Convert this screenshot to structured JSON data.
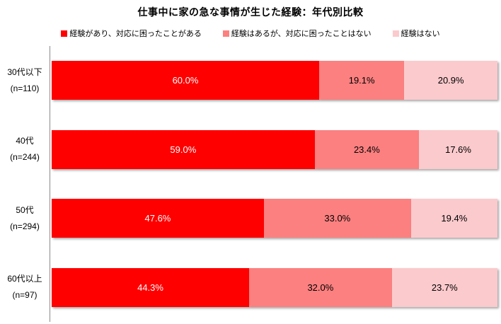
{
  "title": "仕事中に家の急な事情が生じた経験：年代別比較",
  "colors": {
    "axis": "#8a8a8a",
    "series1": "#ff0000",
    "series2": "#fc8080",
    "series3": "#fbcacd",
    "label_on_dark": "#ffffff",
    "label_on_light": "#000000"
  },
  "chart_data": {
    "type": "bar",
    "orientation": "horizontal",
    "stacked": true,
    "title": "仕事中に家の急な事情が生じた経験：年代別比較",
    "categories": [
      "30代以下",
      "40代",
      "50代",
      "60代以上"
    ],
    "category_sublabels": [
      "(n=110)",
      "(n=244)",
      "(n=294)",
      "(n=97)"
    ],
    "series": [
      {
        "name": "経験があり、対応に困ったことがある",
        "color": "#ff0000",
        "label_color": "#ffffff",
        "values": [
          60.0,
          59.0,
          47.6,
          44.3
        ],
        "labels": [
          "60.0%",
          "59.0%",
          "47.6%",
          "44.3%"
        ]
      },
      {
        "name": "経験はあるが、対応に困ったことはない",
        "color": "#fc8080",
        "label_color": "#000000",
        "values": [
          19.1,
          23.4,
          33.0,
          32.0
        ],
        "labels": [
          "19.1%",
          "23.4%",
          "33.0%",
          "32.0%"
        ]
      },
      {
        "name": "経験はない",
        "color": "#fbcacd",
        "label_color": "#000000",
        "values": [
          20.9,
          17.6,
          19.4,
          23.7
        ],
        "labels": [
          "20.9%",
          "17.6%",
          "19.4%",
          "23.7%"
        ]
      }
    ],
    "xlim": [
      0,
      100
    ],
    "legend_position": "top",
    "grid": false
  }
}
